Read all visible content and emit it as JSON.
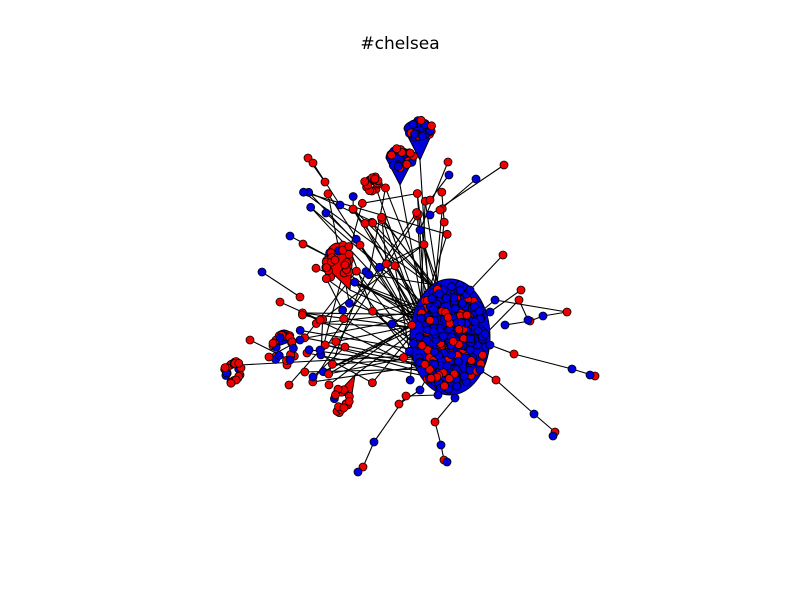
{
  "title": "#chelsea",
  "colors": {
    "node_red": "#ee0000",
    "node_blue": "#0000dd",
    "edge": "#000000",
    "node_outline": "#000000",
    "background": "#ffffff"
  },
  "legend": "none",
  "axes": "hidden"
}
